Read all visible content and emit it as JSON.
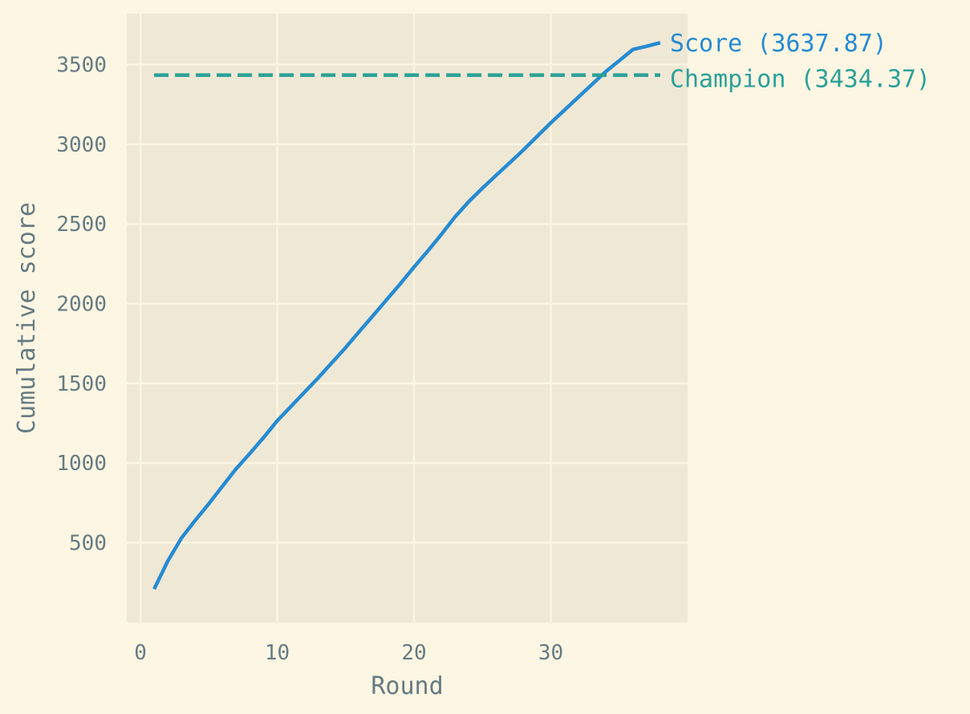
{
  "chart_data": {
    "type": "line",
    "title": "",
    "xlabel": "Round",
    "ylabel": "Cumulative score",
    "xlim": [
      -1,
      40
    ],
    "ylim": [
      -0.5,
      3820
    ],
    "x_ticks": [
      0,
      10,
      20,
      30
    ],
    "y_ticks": [
      500,
      1000,
      1500,
      2000,
      2500,
      3000,
      3500
    ],
    "grid": true,
    "colors": {
      "figure_bg": "#fdf6e3",
      "plot_bg": "#efe8d5",
      "grid": "#fdf6e3",
      "tick_text": "#657b83",
      "score": "#268bd2",
      "champion": "#2aa198"
    },
    "series": [
      {
        "key": "score",
        "style": "solid",
        "x": [
          1,
          2,
          3,
          4,
          5,
          6,
          7,
          8,
          9,
          10,
          11,
          12,
          13,
          14,
          15,
          16,
          17,
          18,
          19,
          20,
          21,
          22,
          23,
          24,
          25,
          26,
          27,
          28,
          29,
          30,
          31,
          32,
          33,
          34,
          35,
          36,
          37,
          38
        ],
        "values": [
          210,
          385,
          530,
          640,
          745,
          855,
          965,
          1060,
          1160,
          1265,
          1355,
          1445,
          1535,
          1630,
          1725,
          1825,
          1925,
          2025,
          2125,
          2230,
          2330,
          2435,
          2545,
          2640,
          2725,
          2805,
          2885,
          2965,
          3050,
          3135,
          3215,
          3295,
          3375,
          3455,
          3525,
          3595,
          3615,
          3637.87
        ]
      },
      {
        "key": "champion",
        "style": "dashed",
        "x": [
          1,
          38
        ],
        "values": [
          3434.37,
          3434.37
        ]
      }
    ],
    "annotations": {
      "score_label": "Score (3637.87)",
      "champion_label": "Champion (3434.37)"
    }
  }
}
